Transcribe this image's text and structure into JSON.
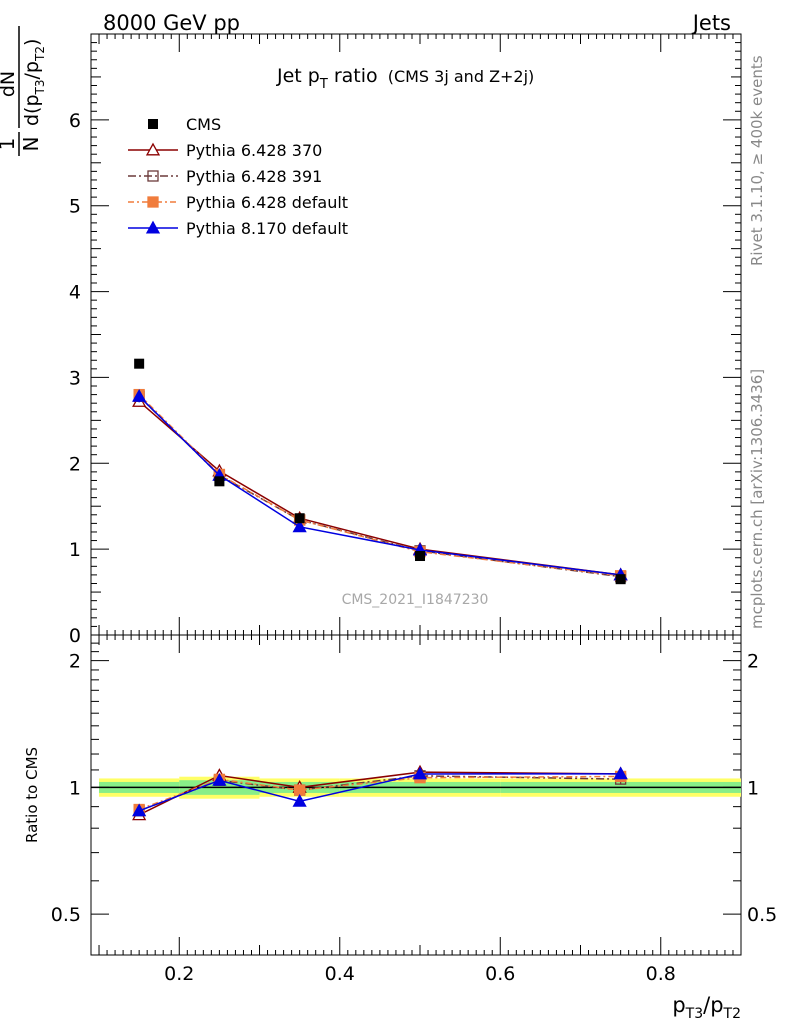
{
  "header": {
    "left": "8000 GeV pp",
    "right": "Jets"
  },
  "side_labels": {
    "rivet": "Rivet 3.1.10, ≥ 400k events",
    "mcplots": "mcplots.cern.ch [arXiv:1306.3436]"
  },
  "watermark": "CMS_2021_I1847230",
  "chart_data": {
    "type": "line",
    "title_main": "Jet p",
    "title_sub": "T",
    "title_rest": " ratio",
    "title_small": "(CMS 3j and Z+2j)",
    "ylabel": {
      "frac_num": "1",
      "frac_den": "N",
      "num": "dN",
      "den_prefix": "d(p",
      "den_sub1": "T3",
      "den_mid": "/p",
      "den_sub2": "T2",
      "den_suffix": ")"
    },
    "xlabel": {
      "p1": "p",
      "s1": "T3",
      "mid": "/p",
      "s2": "T2"
    },
    "ratio_ylabel": "Ratio to CMS",
    "xlim": [
      0.09,
      0.9
    ],
    "ylim": [
      0,
      7
    ],
    "ratio_ylim": [
      0.4,
      2.3
    ],
    "x_ticks": [
      "0.2",
      "0.4",
      "0.6",
      "0.8"
    ],
    "y_ticks": [
      "0",
      "1",
      "2",
      "3",
      "4",
      "5",
      "6"
    ],
    "ratio_ticks": [
      "0.5",
      "1",
      "2"
    ],
    "x_bins": [
      [
        0.1,
        0.2
      ],
      [
        0.2,
        0.3
      ],
      [
        0.3,
        0.4
      ],
      [
        0.4,
        0.6
      ],
      [
        0.6,
        0.9
      ]
    ],
    "x": [
      0.15,
      0.25,
      0.35,
      0.5,
      0.75
    ],
    "data": {
      "name": "CMS",
      "values": [
        3.16,
        1.79,
        1.36,
        0.92,
        0.65
      ],
      "color": "#000000"
    },
    "band_outer": [
      0.05,
      0.06,
      0.05,
      0.05,
      0.05
    ],
    "band_inner": [
      0.03,
      0.04,
      0.03,
      0.03,
      0.03
    ],
    "series": [
      {
        "name": "Pythia 6.428 370",
        "values": [
          2.72,
          1.91,
          1.36,
          1.0,
          0.7
        ],
        "errors": [
          0.06,
          0.03,
          0.02,
          0.02,
          0.02
        ],
        "color": "#8b0000",
        "marker": "open-triangle",
        "dash": ""
      },
      {
        "name": "Pythia 6.428 391",
        "values": [
          2.78,
          1.86,
          1.34,
          0.98,
          0.68
        ],
        "errors": [
          0.06,
          0.03,
          0.02,
          0.02,
          0.02
        ],
        "color": "#6b3a3a",
        "marker": "open-square",
        "dash": "8,3,2,3"
      },
      {
        "name": "Pythia 6.428 default",
        "values": [
          2.8,
          1.87,
          1.34,
          0.97,
          0.69
        ],
        "errors": [
          0.06,
          0.03,
          0.02,
          0.02,
          0.02
        ],
        "color": "#f07c3c",
        "marker": "filled-square",
        "dash": "6,3,2,3"
      },
      {
        "name": "Pythia 8.170 default",
        "values": [
          2.78,
          1.86,
          1.26,
          0.99,
          0.7
        ],
        "errors": [
          0.07,
          0.03,
          0.03,
          0.02,
          0.02
        ],
        "color": "#0000e0",
        "marker": "filled-triangle",
        "dash": ""
      }
    ]
  }
}
